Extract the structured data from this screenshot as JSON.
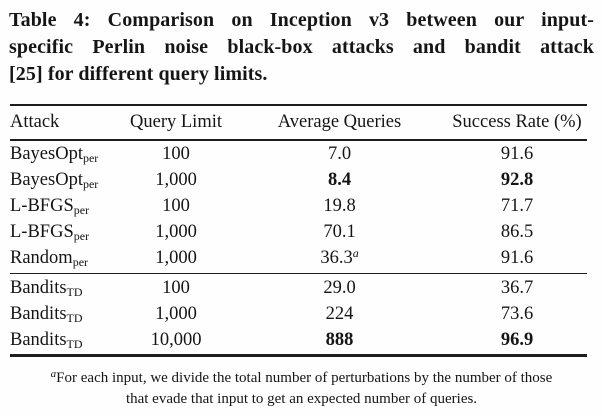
{
  "caption": {
    "line1": "Table 4: Comparison on Inception v3 between our input-",
    "line2": "specific Perlin noise black-box attacks and bandit attack",
    "line3": "[25] for different query limits."
  },
  "table": {
    "headers": [
      "Attack",
      "Query Limit",
      "Average Queries",
      "Success Rate (%)"
    ],
    "groups": [
      {
        "rows": [
          {
            "attack": "BayesOpt",
            "subscript": "per",
            "query_limit": "100",
            "avg_queries": "7.0",
            "avg_bold": false,
            "avg_sup": "",
            "success_rate": "91.6",
            "success_bold": false
          },
          {
            "attack": "BayesOpt",
            "subscript": "per",
            "query_limit": "1,000",
            "avg_queries": "8.4",
            "avg_bold": true,
            "avg_sup": "",
            "success_rate": "92.8",
            "success_bold": true
          },
          {
            "attack": "L-BFGS",
            "subscript": "per",
            "query_limit": "100",
            "avg_queries": "19.8",
            "avg_bold": false,
            "avg_sup": "",
            "success_rate": "71.7",
            "success_bold": false
          },
          {
            "attack": "L-BFGS",
            "subscript": "per",
            "query_limit": "1,000",
            "avg_queries": "70.1",
            "avg_bold": false,
            "avg_sup": "",
            "success_rate": "86.5",
            "success_bold": false
          },
          {
            "attack": "Random",
            "subscript": "per",
            "query_limit": "1,000",
            "avg_queries": "36.3",
            "avg_bold": false,
            "avg_sup": "a",
            "success_rate": "91.6",
            "success_bold": false
          }
        ]
      },
      {
        "rows": [
          {
            "attack": "Bandits",
            "subscript": "TD",
            "query_limit": "100",
            "avg_queries": "29.0",
            "avg_bold": false,
            "avg_sup": "",
            "success_rate": "36.7",
            "success_bold": false
          },
          {
            "attack": "Bandits",
            "subscript": "TD",
            "query_limit": "1,000",
            "avg_queries": "224",
            "avg_bold": false,
            "avg_sup": "",
            "success_rate": "73.6",
            "success_bold": false
          },
          {
            "attack": "Bandits",
            "subscript": "TD",
            "query_limit": "10,000",
            "avg_queries": "888",
            "avg_bold": true,
            "avg_sup": "",
            "success_rate": "96.9",
            "success_bold": true
          }
        ]
      }
    ]
  },
  "footnote": {
    "marker": "a",
    "line1": "For each input, we divide the total number of perturbations by the number of those",
    "line2": "that evade that input to get an expected number of queries."
  }
}
